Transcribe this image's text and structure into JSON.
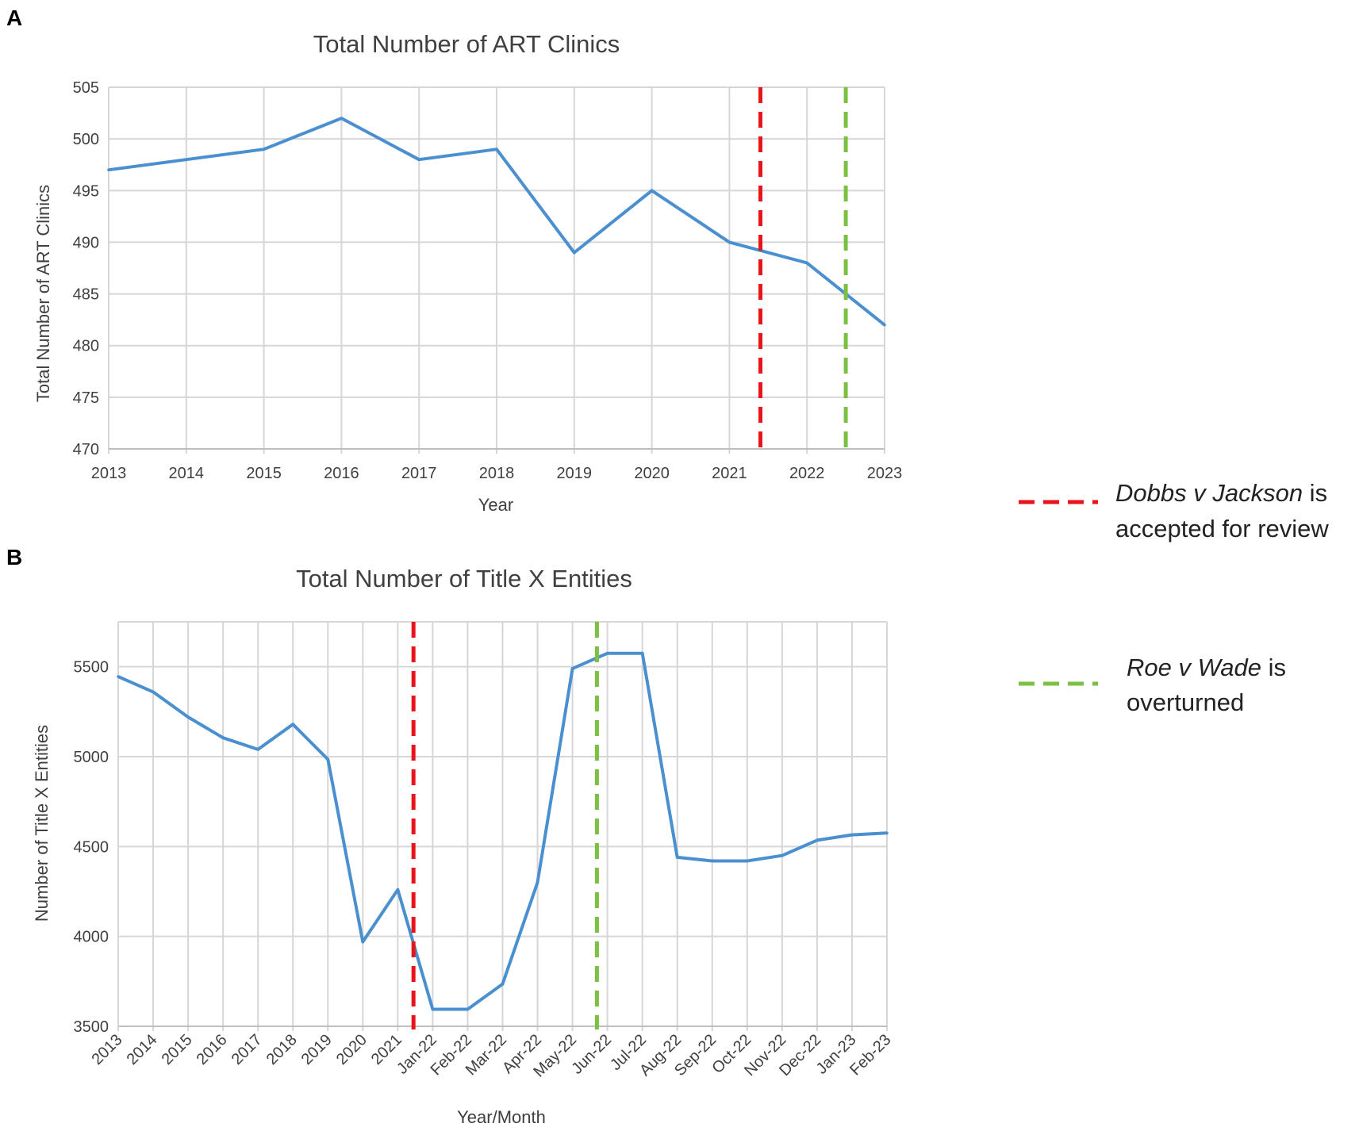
{
  "panels": [
    {
      "letter": "A"
    },
    {
      "letter": "B"
    }
  ],
  "chart_data": [
    {
      "type": "line",
      "title": "Total Number of ART Clinics",
      "xlabel": "Year",
      "ylabel": "Total Number of ART Clinics",
      "ylim": [
        470,
        505
      ],
      "ytick_step": 5,
      "x": [
        "2013",
        "2014",
        "2015",
        "2016",
        "2017",
        "2018",
        "2019",
        "2020",
        "2021",
        "2022",
        "2023"
      ],
      "series": [
        {
          "values": [
            497,
            498,
            499,
            502,
            498,
            499,
            489,
            495,
            490,
            488,
            482
          ],
          "color": "#4a90d0"
        }
      ],
      "vlines": [
        {
          "position": 8.4,
          "color": "#e8141b"
        },
        {
          "position": 9.5,
          "color": "#7ac143"
        }
      ],
      "grid": true
    },
    {
      "type": "line",
      "title": "Total Number of Title X Entities",
      "xlabel": "Year/Month",
      "ylabel": "Number of Title X Entities",
      "ylim": [
        3500,
        5750
      ],
      "yticks": [
        3500,
        4000,
        4500,
        5000,
        5500
      ],
      "x": [
        "2013",
        "2014",
        "2015",
        "2016",
        "2017",
        "2018",
        "2019",
        "2020",
        "2021",
        "Jan-22",
        "Feb-22",
        "Mar-22",
        "Apr-22",
        "May-22",
        "Jun-22",
        "Jul-22",
        "Aug-22",
        "Sep-22",
        "Oct-22",
        "Nov-22",
        "Dec-22",
        "Jan-23",
        "Feb-23"
      ],
      "series": [
        {
          "values": [
            5445,
            5360,
            5220,
            5105,
            5040,
            5180,
            4985,
            3970,
            4260,
            3595,
            3595,
            3735,
            4300,
            5490,
            5575,
            5575,
            4440,
            4420,
            4420,
            4450,
            4535,
            4565,
            4575
          ],
          "color": "#4a90d0"
        }
      ],
      "vlines": [
        {
          "position": 8.45,
          "color": "#e8141b"
        },
        {
          "position": 13.7,
          "color": "#7ac143"
        }
      ],
      "grid": true
    }
  ],
  "legend": {
    "items": [
      {
        "color": "#e8141b",
        "italic": "Dobbs v Jackson",
        "rest": " is",
        "line2": "accepted for review"
      },
      {
        "color": "#7ac143",
        "italic": "Roe v Wade",
        "rest": " is",
        "line2": "overturned"
      }
    ]
  }
}
